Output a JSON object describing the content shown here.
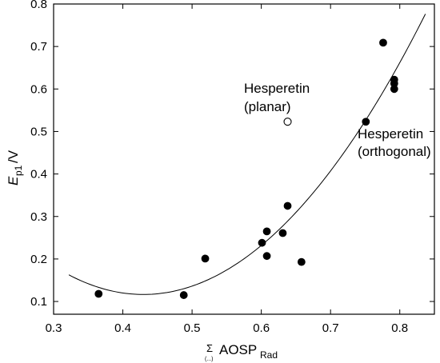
{
  "chart_data": {
    "type": "scatter",
    "xlabel": {
      "main": "AOSP",
      "subscript": "Rad",
      "prefix_symbol": "Σ",
      "prefix_sub": "(...)"
    },
    "ylabel": {
      "main_italic": "E",
      "subscript": "p1",
      "suffix": "/V"
    },
    "xlim": [
      0.3,
      0.85
    ],
    "ylim": [
      0.07,
      0.8
    ],
    "xticks": [
      "0.3",
      "0.4",
      "0.5",
      "0.6",
      "0.7",
      "0.8"
    ],
    "yticks": [
      "0.1",
      "0.2",
      "0.3",
      "0.4",
      "0.5",
      "0.6",
      "0.7",
      "0.8"
    ],
    "series": [
      {
        "marker": "filled-circle",
        "points": [
          {
            "x": 0.365,
            "y": 0.118
          },
          {
            "x": 0.488,
            "y": 0.115
          },
          {
            "x": 0.519,
            "y": 0.201
          },
          {
            "x": 0.601,
            "y": 0.238
          },
          {
            "x": 0.608,
            "y": 0.265
          },
          {
            "x": 0.608,
            "y": 0.207
          },
          {
            "x": 0.631,
            "y": 0.261
          },
          {
            "x": 0.638,
            "y": 0.325
          },
          {
            "x": 0.658,
            "y": 0.193
          },
          {
            "x": 0.751,
            "y": 0.523
          },
          {
            "x": 0.776,
            "y": 0.709
          },
          {
            "x": 0.792,
            "y": 0.622
          },
          {
            "x": 0.792,
            "y": 0.613
          },
          {
            "x": 0.792,
            "y": 0.6
          }
        ]
      },
      {
        "marker": "open-circle",
        "points": [
          {
            "x": 0.638,
            "y": 0.523
          }
        ]
      }
    ],
    "fit_curve": {
      "type": "quadratic",
      "x_range": [
        0.322,
        0.837
      ],
      "through": [
        [
          0.322,
          0.165
        ],
        [
          0.435,
          0.112
        ],
        [
          0.55,
          0.175
        ],
        [
          0.7,
          0.41
        ],
        [
          0.837,
          0.775
        ]
      ]
    },
    "annotations": [
      {
        "lines": [
          "Hesperetin",
          "(planar)"
        ]
      },
      {
        "lines": [
          "Hesperetin",
          "(orthogonal)"
        ]
      }
    ]
  }
}
